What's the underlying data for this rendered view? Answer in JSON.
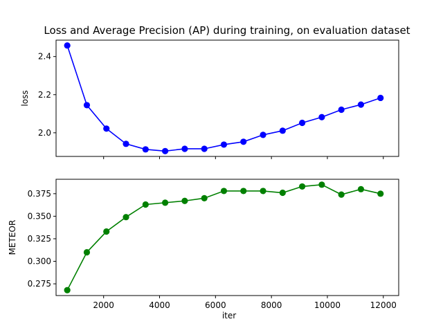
{
  "chart_data": {
    "type": "line",
    "title": "Loss and Average Precision (AP) during training, on evaluation dataset",
    "xlabel": "iter",
    "x": [
      700,
      1400,
      2100,
      2800,
      3500,
      4200,
      4900,
      5600,
      6300,
      7000,
      7700,
      8400,
      9100,
      9800,
      10500,
      11200,
      11900
    ],
    "xlim": [
      300,
      12550
    ],
    "xticks": [
      2000,
      4000,
      6000,
      8000,
      10000,
      12000
    ],
    "panels": [
      {
        "ylabel": "loss",
        "ylim": [
          1.876,
          2.486
        ],
        "yticks": [
          "2.0",
          "2.2",
          "2.4"
        ],
        "yticks_values": [
          2.0,
          2.2,
          2.4
        ],
        "color": "#0000ff",
        "show_xticklabels": false,
        "series": [
          {
            "values": [
              2.458,
              2.145,
              2.022,
              1.942,
              1.913,
              1.904,
              1.916,
              1.916,
              1.938,
              1.953,
              1.989,
              2.011,
              2.052,
              2.082,
              2.121,
              2.148,
              2.183
            ]
          }
        ]
      },
      {
        "ylabel": "METEOR",
        "ylim": [
          0.262,
          0.391
        ],
        "yticks": [
          "0.275",
          "0.300",
          "0.325",
          "0.350",
          "0.375"
        ],
        "yticks_values": [
          0.275,
          0.3,
          0.325,
          0.35,
          0.375
        ],
        "color": "#008000",
        "show_xticklabels": true,
        "series": [
          {
            "values": [
              0.268,
              0.31,
              0.333,
              0.349,
              0.363,
              0.365,
              0.367,
              0.37,
              0.378,
              0.378,
              0.378,
              0.376,
              0.383,
              0.385,
              0.374,
              0.38,
              0.375
            ]
          }
        ]
      }
    ]
  }
}
